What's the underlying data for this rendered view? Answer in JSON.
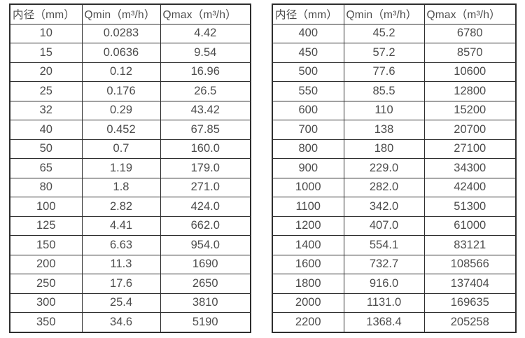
{
  "colors": {
    "background": "#ffffff",
    "border": "#2e2e2e",
    "text": "#4c4c4c"
  },
  "tables": [
    {
      "name": "small-diameters",
      "headers": [
        "内径（mm）",
        "Qmin（m³/h）",
        "Qmax（m³/h）"
      ],
      "rows": [
        [
          "10",
          "0.0283",
          "4.42"
        ],
        [
          "15",
          "0.0636",
          "9.54"
        ],
        [
          "20",
          "0.12",
          "16.96"
        ],
        [
          "25",
          "0.176",
          "26.5"
        ],
        [
          "32",
          "0.29",
          "43.42"
        ],
        [
          "40",
          "0.452",
          "67.85"
        ],
        [
          "50",
          "0.7",
          "160.0"
        ],
        [
          "65",
          "1.19",
          "179.0"
        ],
        [
          "80",
          "1.8",
          "271.0"
        ],
        [
          "100",
          "2.82",
          "424.0"
        ],
        [
          "125",
          "4.41",
          "662.0"
        ],
        [
          "150",
          "6.63",
          "954.0"
        ],
        [
          "200",
          "11.3",
          "1690"
        ],
        [
          "250",
          "17.6",
          "2650"
        ],
        [
          "300",
          "25.4",
          "3810"
        ],
        [
          "350",
          "34.6",
          "5190"
        ]
      ]
    },
    {
      "name": "large-diameters",
      "headers": [
        "内径（mm）",
        "Qmin（m³/h）",
        "Qmax（m³/h）"
      ],
      "rows": [
        [
          "400",
          "45.2",
          "6780"
        ],
        [
          "450",
          "57.2",
          "8570"
        ],
        [
          "500",
          "77.6",
          "10600"
        ],
        [
          "550",
          "85.5",
          "12800"
        ],
        [
          "600",
          "110",
          "15200"
        ],
        [
          "700",
          "138",
          "20700"
        ],
        [
          "800",
          "180",
          "27100"
        ],
        [
          "900",
          "229.0",
          "34300"
        ],
        [
          "1000",
          "282.0",
          "42400"
        ],
        [
          "1100",
          "342.0",
          "51300"
        ],
        [
          "1200",
          "407.0",
          "61000"
        ],
        [
          "1400",
          "554.1",
          "83121"
        ],
        [
          "1600",
          "732.7",
          "108566"
        ],
        [
          "1800",
          "916.0",
          "137404"
        ],
        [
          "2000",
          "1131.0",
          "169635"
        ],
        [
          "2200",
          "1368.4",
          "205258"
        ]
      ]
    }
  ]
}
